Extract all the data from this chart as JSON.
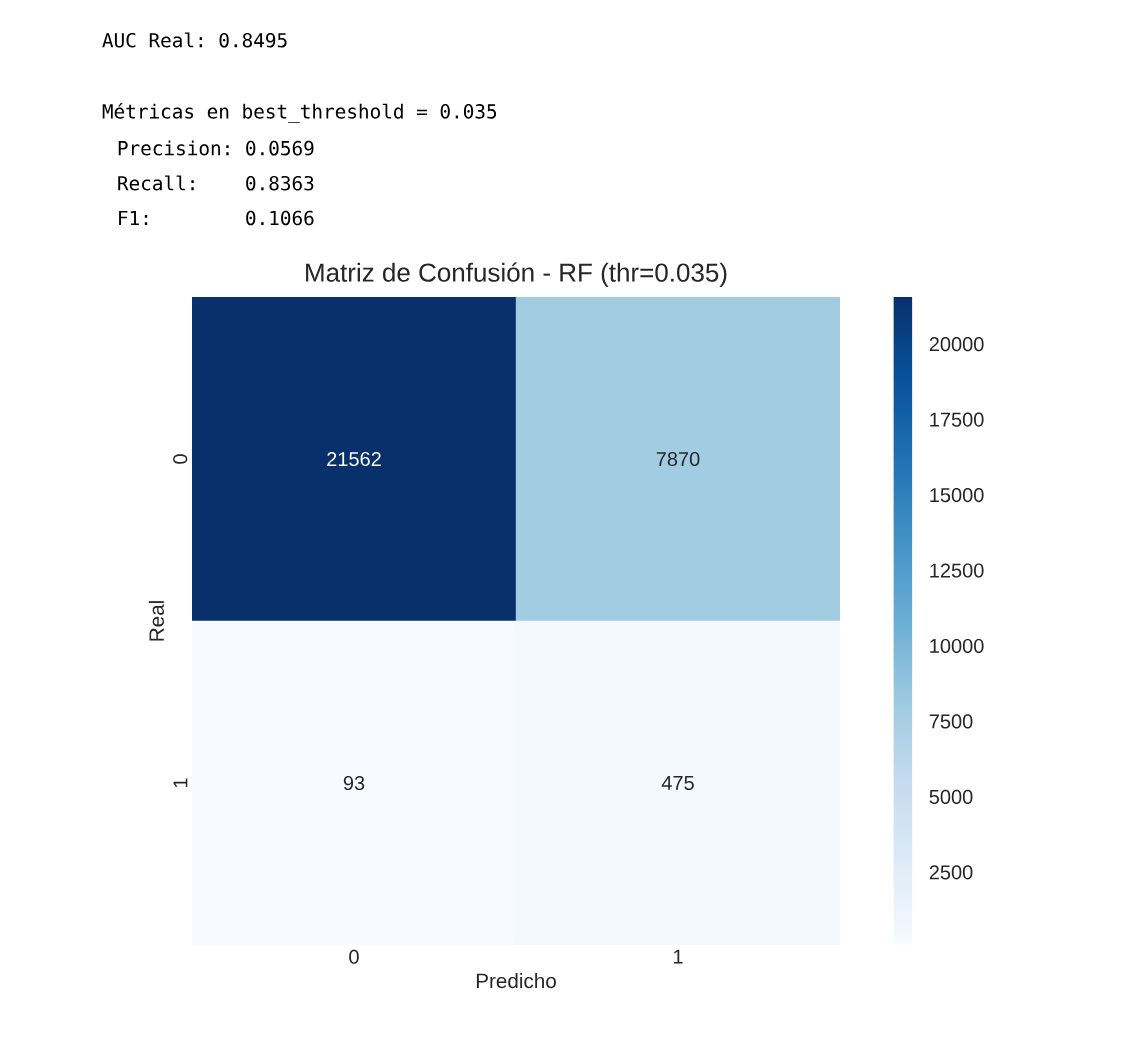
{
  "chart_data": {
    "type": "heatmap",
    "title": "Matriz de Confusión - RF (thr=0.035)",
    "xlabel": "Predicho",
    "ylabel": "Real",
    "categories": [
      "0",
      "1"
    ],
    "y_categories": [
      "0",
      "1"
    ],
    "cells": [
      [
        21562,
        7870
      ],
      [
        93,
        475
      ]
    ],
    "data_labels": true,
    "clim": [
      93,
      21562
    ],
    "cticks": [
      2500,
      5000,
      7500,
      10000,
      12500,
      15000,
      17500,
      20000
    ],
    "annotations": [
      "AUC Real: 0.8495",
      "Métricas en best_threshold = 0.035",
      "Precision: 0.0569",
      "Recall:    0.8363",
      "F1:        0.1066"
    ]
  }
}
